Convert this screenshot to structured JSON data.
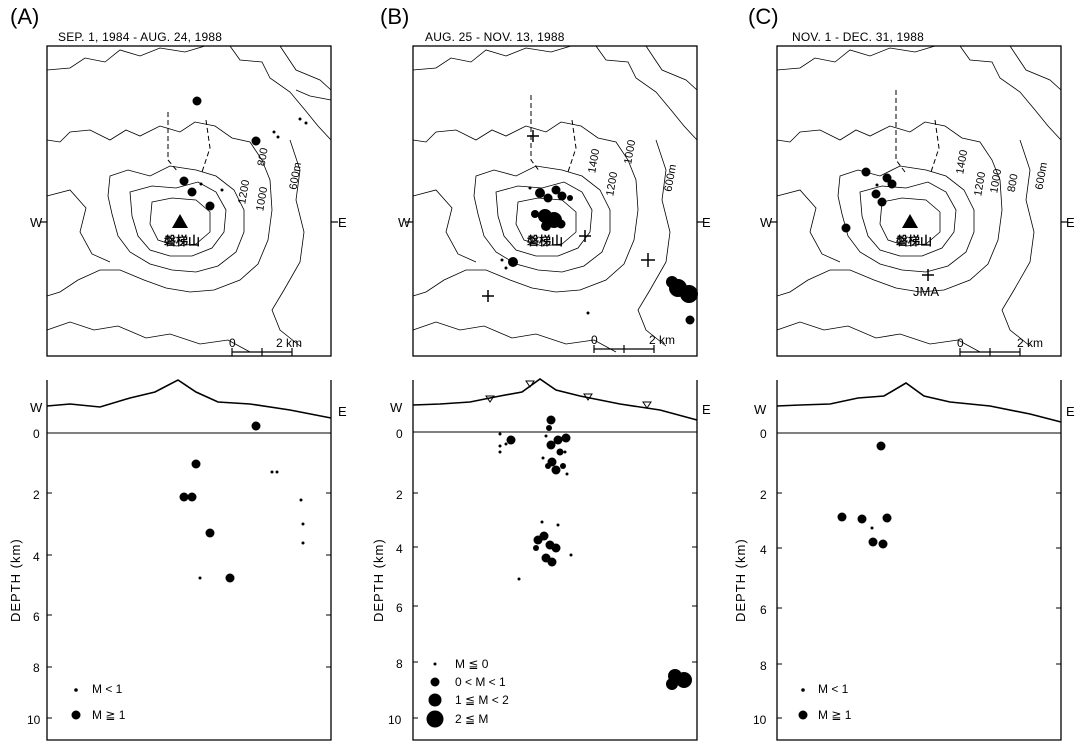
{
  "panels": [
    {
      "letter": "(A)",
      "period": "SEP. 1, 1984 - AUG. 24, 1988",
      "west": "W",
      "east": "E",
      "contours": [
        "1200",
        "1000",
        "800",
        "600m"
      ],
      "volcano": "磐梯山",
      "scale_zero": "0",
      "scale_label": "2 km",
      "legend": [
        {
          "symbol": "small-dot",
          "text": "M  <  1"
        },
        {
          "symbol": "large-dot",
          "text": "M  ≧  1"
        }
      ]
    },
    {
      "letter": "(B)",
      "period": "AUG. 25 - NOV. 13, 1988",
      "west": "W",
      "east": "E",
      "contours": [
        "1400",
        "1200",
        "1000",
        "600m"
      ],
      "volcano": "磐梯山",
      "scale_zero": "0",
      "scale_label": "2 km",
      "legend": [
        {
          "symbol": "tiny-dot",
          "text": "M  ≦  0"
        },
        {
          "symbol": "small-dot",
          "text": "0  <  M  <  1"
        },
        {
          "symbol": "medium-dot",
          "text": "1  ≦  M  <  2"
        },
        {
          "symbol": "large-dot",
          "text": "2  ≦  M"
        }
      ]
    },
    {
      "letter": "(C)",
      "period": "NOV. 1 - DEC. 31, 1988",
      "west": "W",
      "east": "E",
      "contours": [
        "1400",
        "1200",
        "1000",
        "800",
        "600m"
      ],
      "volcano": "磐梯山",
      "station": "JMA",
      "scale_zero": "0",
      "scale_label": "2 km",
      "legend": [
        {
          "symbol": "small-dot",
          "text": "M  <  1"
        },
        {
          "symbol": "large-dot",
          "text": "M  ≧  1"
        }
      ]
    }
  ],
  "depth_axis": {
    "label": "DEPTH (km)",
    "ticks": [
      "0",
      "2",
      "4",
      "6",
      "8",
      "10"
    ]
  }
}
